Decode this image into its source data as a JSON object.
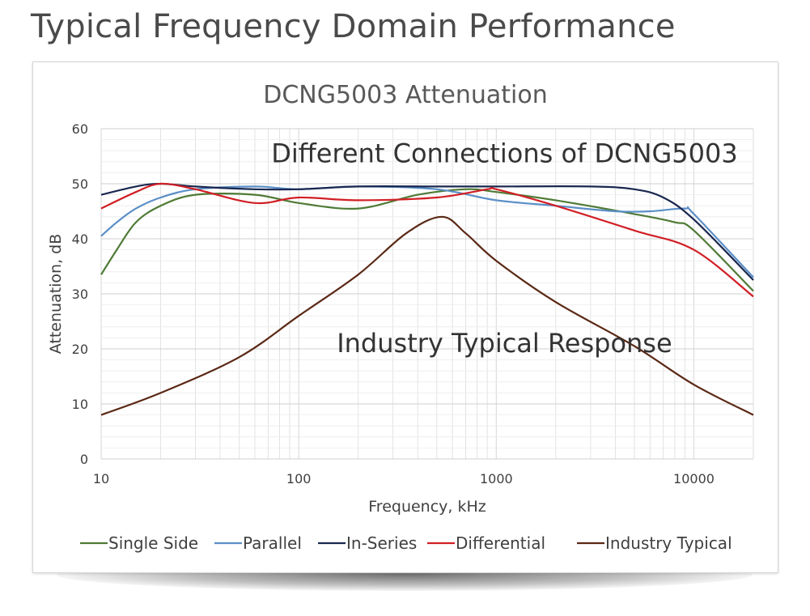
{
  "page": {
    "heading": "Typical Frequency Domain Performance"
  },
  "colors": {
    "single_side": "#4e7a35",
    "parallel": "#5b8fc7",
    "in_series": "#1a2850",
    "differential": "#d11f25",
    "industry_typical": "#5a2814",
    "grid": "#dcdcdc",
    "axis_text": "#404040"
  },
  "chart_data": {
    "type": "line",
    "title": "DCNG5003 Attenuation",
    "xlabel": "Frequency, kHz",
    "ylabel": "Attenuation, dB",
    "x_scale": "log",
    "xlim": [
      10,
      20000
    ],
    "ylim": [
      0,
      60
    ],
    "x_ticks": [
      10,
      100,
      1000,
      10000
    ],
    "x_tick_labels": [
      "10",
      "100",
      "1000",
      "10000"
    ],
    "y_ticks": [
      0,
      10,
      20,
      30,
      40,
      50,
      60
    ],
    "y_tick_labels": [
      "0",
      "10",
      "20",
      "30",
      "40",
      "50",
      "60"
    ],
    "grid": true,
    "legend_position": "bottom",
    "annotations": [
      {
        "text": "Different Connections of DCNG5003",
        "x": 1100,
        "y": 55.5
      },
      {
        "text": "Industry Typical Response",
        "x": 1100,
        "y": 21
      }
    ],
    "series": [
      {
        "name": "Single Side",
        "color_key": "single_side",
        "x": [
          10,
          12,
          15,
          20,
          30,
          60,
          100,
          200,
          400,
          700,
          1000,
          2000,
          5000,
          8000,
          10000,
          20000
        ],
        "y": [
          33.5,
          38,
          43,
          46,
          48,
          48,
          46.5,
          45.5,
          48,
          49,
          48.5,
          47,
          44.5,
          43,
          41.5,
          30.5
        ]
      },
      {
        "name": "Parallel",
        "color_key": "parallel",
        "x": [
          10,
          12,
          15,
          20,
          30,
          60,
          100,
          200,
          500,
          1000,
          2000,
          4000,
          6000,
          9000,
          10000,
          20000
        ],
        "y": [
          40.5,
          43,
          45.5,
          47.5,
          49,
          49.5,
          49,
          49.5,
          49,
          47,
          46,
          45,
          45,
          45.5,
          44.5,
          33
        ]
      },
      {
        "name": "In-Series",
        "color_key": "in_series",
        "x": [
          10,
          15,
          20,
          30,
          60,
          100,
          200,
          500,
          1000,
          3000,
          5000,
          7000,
          10000,
          20000
        ],
        "y": [
          48,
          49.5,
          50,
          49.5,
          49,
          49,
          49.5,
          49.5,
          49.5,
          49.5,
          49,
          47.5,
          43.5,
          32.5
        ]
      },
      {
        "name": "Differential",
        "color_key": "differential",
        "x": [
          10,
          15,
          20,
          30,
          60,
          100,
          200,
          500,
          900,
          1000,
          2000,
          5000,
          10000,
          20000
        ],
        "y": [
          45.5,
          48.5,
          50,
          49,
          46.5,
          47.5,
          47,
          47.5,
          49,
          49,
          46,
          41.5,
          38,
          29.5
        ]
      },
      {
        "name": "Industry Typical",
        "color_key": "industry_typical",
        "x": [
          10,
          20,
          50,
          100,
          200,
          350,
          530,
          700,
          1000,
          2000,
          5000,
          10000,
          20000
        ],
        "y": [
          8,
          12,
          18.5,
          26,
          33.5,
          41,
          44,
          41,
          36,
          28.5,
          20.5,
          13.5,
          8
        ]
      }
    ]
  }
}
